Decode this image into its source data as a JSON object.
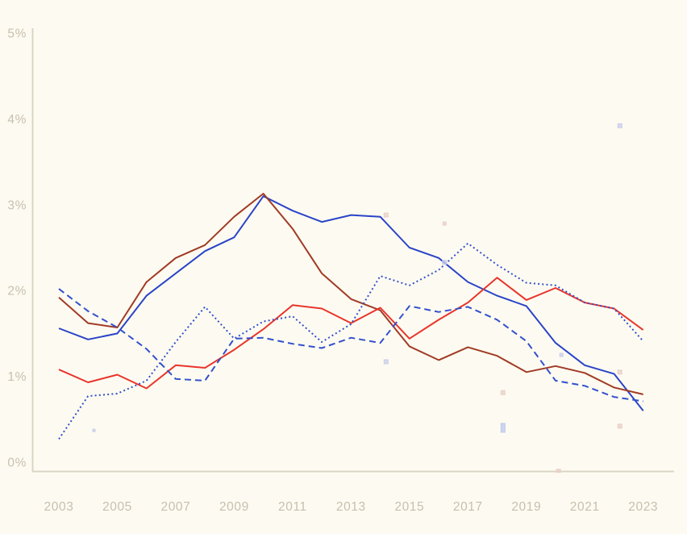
{
  "chart_data": {
    "type": "line",
    "title": "",
    "xlabel": "",
    "ylabel": "",
    "x": [
      2003,
      2004,
      2005,
      2006,
      2007,
      2008,
      2009,
      2010,
      2011,
      2012,
      2013,
      2014,
      2015,
      2016,
      2017,
      2018,
      2019,
      2020,
      2021,
      2022,
      2023
    ],
    "x_tick_labels": [
      "2003",
      "2005",
      "2007",
      "2009",
      "2011",
      "2013",
      "2015",
      "2017",
      "2019",
      "2021",
      "2023"
    ],
    "x_tick_years": [
      2003,
      2005,
      2007,
      2009,
      2011,
      2013,
      2015,
      2017,
      2019,
      2021,
      2023
    ],
    "y_tick_labels": [
      "0%",
      "1%",
      "2%",
      "3%",
      "4%",
      "5%"
    ],
    "y_tick_values": [
      0,
      1,
      2,
      3,
      4,
      5
    ],
    "ylim": [
      0,
      5
    ],
    "grid": false,
    "legend_position": "none",
    "series": [
      {
        "name": "solid-blue-line",
        "style": "solid",
        "color": "#2b44c8",
        "values": [
          1.56,
          1.43,
          1.5,
          1.94,
          2.2,
          2.46,
          2.62,
          3.1,
          2.93,
          2.8,
          2.88,
          2.86,
          2.5,
          2.38,
          2.1,
          1.94,
          1.82,
          1.39,
          1.13,
          1.03,
          0.6
        ]
      },
      {
        "name": "solid-darkred-line",
        "style": "solid",
        "color": "#a03b26",
        "values": [
          1.92,
          1.62,
          1.57,
          2.1,
          2.38,
          2.53,
          2.86,
          3.13,
          2.72,
          2.2,
          1.9,
          1.77,
          1.35,
          1.19,
          1.34,
          1.24,
          1.05,
          1.12,
          1.04,
          0.87,
          0.79
        ]
      },
      {
        "name": "solid-red-line",
        "style": "solid",
        "color": "#e8352c",
        "values": [
          1.08,
          0.93,
          1.02,
          0.86,
          1.13,
          1.1,
          1.31,
          1.55,
          1.83,
          1.79,
          1.62,
          1.8,
          1.44,
          1.66,
          1.86,
          2.15,
          1.89,
          2.03,
          1.86,
          1.79,
          1.54
        ]
      },
      {
        "name": "dashed-blue-line",
        "style": "dashed",
        "color": "#3350cd",
        "values": [
          2.02,
          1.76,
          1.57,
          1.32,
          0.97,
          0.95,
          1.44,
          1.45,
          1.38,
          1.33,
          1.45,
          1.39,
          1.82,
          1.75,
          1.81,
          1.66,
          1.41,
          0.95,
          0.89,
          0.76,
          0.71
        ]
      },
      {
        "name": "dotted-blue-line",
        "style": "dotted",
        "color": "#3350cd",
        "values": [
          0.27,
          0.77,
          0.8,
          0.95,
          1.4,
          1.81,
          1.44,
          1.64,
          1.7,
          1.4,
          1.61,
          2.17,
          2.06,
          2.24,
          2.55,
          2.3,
          2.09,
          2.06,
          1.86,
          1.79,
          1.41
        ]
      }
    ],
    "scatter_markers": [
      {
        "x": 2004.2,
        "y": 0.37,
        "color": "lavender",
        "w": 3,
        "h": 3
      },
      {
        "x": 2014.2,
        "y": 2.88,
        "color": "pink",
        "w": 5,
        "h": 5
      },
      {
        "x": 2014.2,
        "y": 1.17,
        "color": "lavender",
        "w": 5,
        "h": 5
      },
      {
        "x": 2016.2,
        "y": 2.78,
        "color": "pink",
        "w": 4,
        "h": 4
      },
      {
        "x": 2016.2,
        "y": 2.33,
        "color": "lavender",
        "w": 5,
        "h": 5
      },
      {
        "x": 2018.2,
        "y": 0.81,
        "color": "pink",
        "w": 5,
        "h": 5
      },
      {
        "x": 2018.2,
        "y": 0.4,
        "color": "blue",
        "w": 5,
        "h": 11
      },
      {
        "x": 2020.2,
        "y": 1.25,
        "color": "lavender",
        "w": 4,
        "h": 4
      },
      {
        "x": 2020.1,
        "y": -0.1,
        "color": "pink",
        "w": 5,
        "h": 4
      },
      {
        "x": 2022.2,
        "y": 3.92,
        "color": "lavender",
        "w": 5,
        "h": 5
      },
      {
        "x": 2022.2,
        "y": 1.05,
        "color": "pink",
        "w": 5,
        "h": 5
      },
      {
        "x": 2022.2,
        "y": 0.42,
        "color": "pink",
        "w": 5,
        "h": 5
      }
    ],
    "marker_colors": {
      "pink": "#e9cfc7",
      "lavender": "#c9cde9",
      "blue": "#bdc8ec"
    },
    "axis_color": "#dad4c6",
    "tick_label_color": "#c8bfae",
    "background_color": "#fdfbf1"
  }
}
